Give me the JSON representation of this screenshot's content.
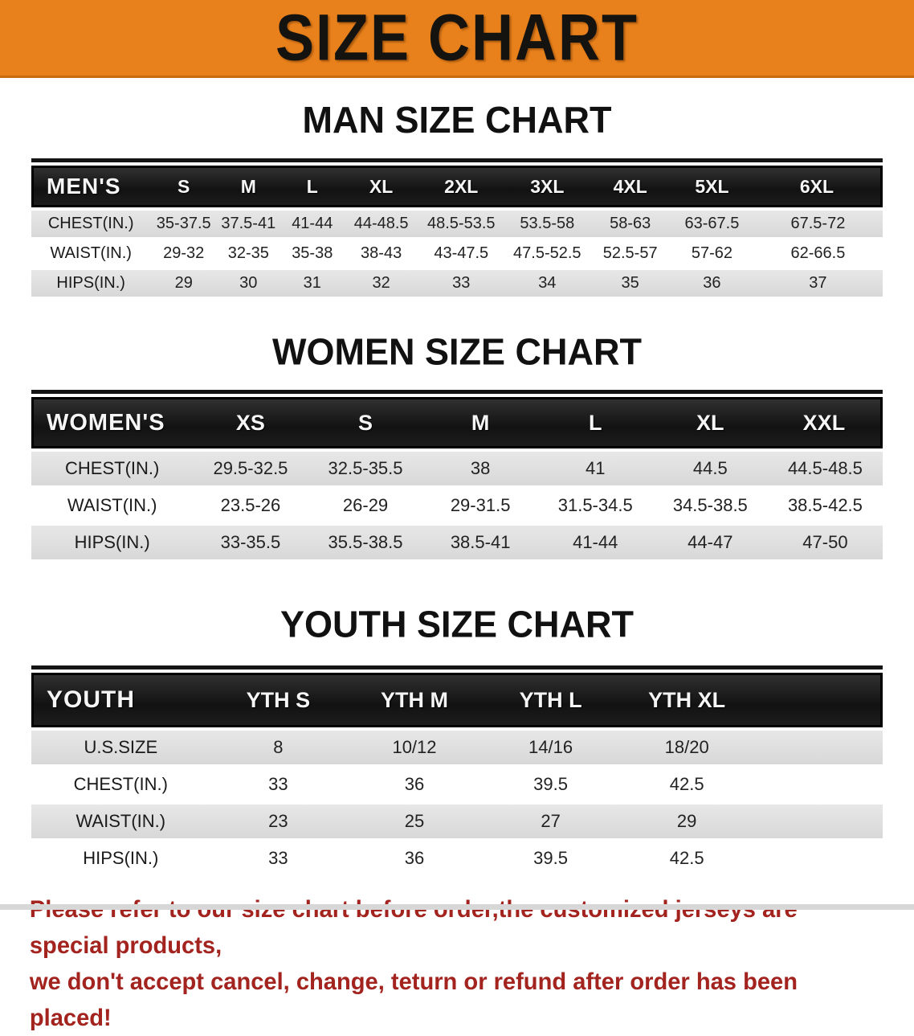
{
  "banner": {
    "title": "SIZE CHART"
  },
  "colors": {
    "banner_bg": "#e8811b",
    "table_header_bg": "#1a1a1a",
    "row_stripe": "#dedede",
    "footer_text": "#a3231f"
  },
  "sections": [
    {
      "heading": "MAN SIZE CHART",
      "table": {
        "header_label": "MEN'S",
        "sizes": [
          "S",
          "M",
          "L",
          "XL",
          "2XL",
          "3XL",
          "4XL",
          "5XL",
          "6XL"
        ],
        "rows": [
          {
            "label": "CHEST(IN.)",
            "values": [
              "35-37.5",
              "37.5-41",
              "41-44",
              "44-48.5",
              "48.5-53.5",
              "53.5-58",
              "58-63",
              "63-67.5",
              "67.5-72"
            ]
          },
          {
            "label": "WAIST(IN.)",
            "values": [
              "29-32",
              "32-35",
              "35-38",
              "38-43",
              "43-47.5",
              "47.5-52.5",
              "52.5-57",
              "57-62",
              "62-66.5"
            ]
          },
          {
            "label": "HIPS(IN.)",
            "values": [
              "29",
              "30",
              "31",
              "32",
              "33",
              "34",
              "35",
              "36",
              "37"
            ]
          }
        ]
      }
    },
    {
      "heading": "WOMEN SIZE CHART",
      "table": {
        "header_label": "WOMEN'S",
        "sizes": [
          "XS",
          "S",
          "M",
          "L",
          "XL",
          "XXL"
        ],
        "rows": [
          {
            "label": "CHEST(IN.)",
            "values": [
              "29.5-32.5",
              "32.5-35.5",
              "38",
              "41",
              "44.5",
              "44.5-48.5"
            ]
          },
          {
            "label": "WAIST(IN.)",
            "values": [
              "23.5-26",
              "26-29",
              "29-31.5",
              "31.5-34.5",
              "34.5-38.5",
              "38.5-42.5"
            ]
          },
          {
            "label": "HIPS(IN.)",
            "values": [
              "33-35.5",
              "35.5-38.5",
              "38.5-41",
              "41-44",
              "44-47",
              "47-50"
            ]
          }
        ]
      }
    },
    {
      "heading": "YOUTH SIZE CHART",
      "table": {
        "header_label": "YOUTH",
        "sizes": [
          "YTH S",
          "YTH M",
          "YTH L",
          "YTH XL"
        ],
        "rows": [
          {
            "label": "U.S.SIZE",
            "values": [
              "8",
              "10/12",
              "14/16",
              "18/20"
            ]
          },
          {
            "label": "CHEST(IN.)",
            "values": [
              "33",
              "36",
              "39.5",
              "42.5"
            ]
          },
          {
            "label": "WAIST(IN.)",
            "values": [
              "23",
              "25",
              "27",
              "29"
            ]
          },
          {
            "label": "HIPS(IN.)",
            "values": [
              "33",
              "36",
              "39.5",
              "42.5"
            ]
          }
        ]
      }
    }
  ],
  "footer_note": {
    "line1": "Please refer to our size chart before order,the customized jerseys are special products,",
    "line2": "we don't accept cancel, change, teturn or refund after order has been placed!"
  }
}
